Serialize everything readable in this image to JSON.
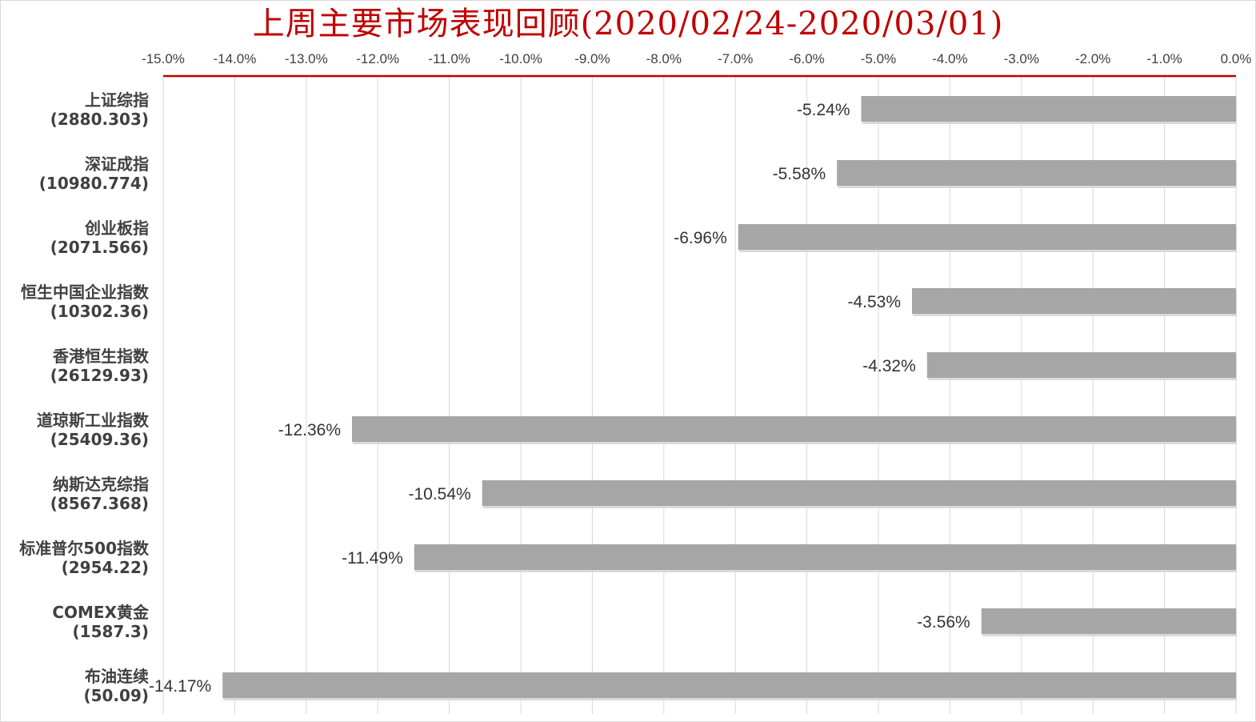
{
  "chart_data": {
    "type": "bar",
    "orientation": "horizontal",
    "title": "上周主要市场表现回顾(2020/02/24-2020/03/01)",
    "xlim": [
      -15.0,
      0.0
    ],
    "x_ticks": [
      "-15.0%",
      "-14.0%",
      "-13.0%",
      "-12.0%",
      "-11.0%",
      "-10.0%",
      "-9.0%",
      "-8.0%",
      "-7.0%",
      "-6.0%",
      "-5.0%",
      "-4.0%",
      "-3.0%",
      "-2.0%",
      "-1.0%",
      "0.0%"
    ],
    "x_tick_values": [
      -15,
      -14,
      -13,
      -12,
      -11,
      -10,
      -9,
      -8,
      -7,
      -6,
      -5,
      -4,
      -3,
      -2,
      -1,
      0
    ],
    "axis_position": "top",
    "grid": true,
    "categories": [
      {
        "name": "上证综指",
        "value_text": "(2880.303)"
      },
      {
        "name": "深证成指",
        "value_text": "(10980.774)"
      },
      {
        "name": "创业板指",
        "value_text": "(2071.566)"
      },
      {
        "name": "恒生中国企业指数",
        "value_text": "(10302.36)"
      },
      {
        "name": "香港恒生指数",
        "value_text": "(26129.93)"
      },
      {
        "name": "道琼斯工业指数",
        "value_text": "(25409.36)"
      },
      {
        "name": "纳斯达克综指",
        "value_text": "(8567.368)"
      },
      {
        "name": "标准普尔500指数",
        "value_text": "(2954.22)"
      },
      {
        "name": "COMEX黄金",
        "value_text": "(1587.3)"
      },
      {
        "name": "布油连续",
        "value_text": "(50.09)"
      }
    ],
    "values": [
      -5.24,
      -5.58,
      -6.96,
      -4.53,
      -4.32,
      -12.36,
      -10.54,
      -11.49,
      -3.56,
      -14.17
    ],
    "data_labels": [
      "-5.24%",
      "-5.58%",
      "-6.96%",
      "-4.53%",
      "-4.32%",
      "-12.36%",
      "-10.54%",
      "-11.49%",
      "-3.56%",
      "-14.17%"
    ],
    "colors": {
      "bar": "#a6a6a6",
      "bar_shadow": "#d9d9d9",
      "axis_line": "#c00000",
      "grid": "#d9d9d9",
      "title": "#c00000"
    }
  }
}
